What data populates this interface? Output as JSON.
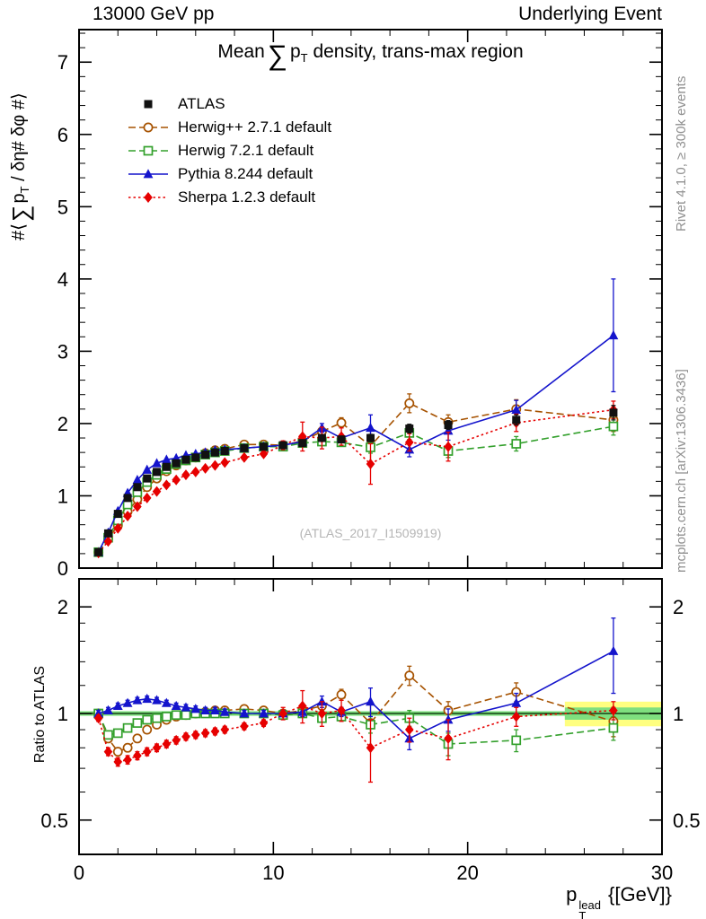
{
  "header": {
    "left": "13000 GeV pp",
    "right": "Underlying Event"
  },
  "side_notes": {
    "top": "Rivet 4.1.0, ≥ 300k events",
    "bottom": "mcplots.cern.ch [arXiv:1306.3436]"
  },
  "watermark": "(ATLAS_2017_I1509919)",
  "title": {
    "pre": "Mean",
    "sum": "∑",
    "p": "p",
    "sub": "T",
    "post": "density, trans-max region"
  },
  "ylabel": {
    "pre": "#⟨",
    "sum": "∑",
    "p": "p",
    "sub": "T",
    "post": "/ δη# δφ #⟩"
  },
  "ratio_label": "Ratio to ATLAS",
  "xlabel": {
    "p": "p",
    "sup": "lead",
    "sub": "T",
    "post": "{[GeV]}"
  },
  "chart_data": {
    "type": "line",
    "title": "Mean Sum pT density, trans-max region",
    "xlabel": "pT lead [GeV]",
    "xlim": [
      0,
      30
    ],
    "xticks": [
      0,
      10,
      20,
      30
    ],
    "x_minor_step": 2,
    "main_panel": {
      "ylim": [
        0,
        7.45
      ],
      "yticks": [
        0,
        1,
        2,
        3,
        4,
        5,
        6,
        7
      ],
      "y_minor_step": 0.2
    },
    "ratio_panel": {
      "scale": "log",
      "ylim": [
        0.4,
        2.4
      ],
      "yticks": [
        0.5,
        1,
        2
      ],
      "y_minor": [
        0.6,
        0.7,
        0.8,
        0.9,
        1.2,
        1.4,
        1.6,
        1.8
      ],
      "band": {
        "full_halfwidth": 0.015,
        "right_from_x": 25,
        "yellow_halfwidth": 0.08,
        "green_halfwidth": 0.04,
        "yellow": "#ffff80",
        "green": "#7fdf7f",
        "line": "#00a000"
      }
    },
    "x": [
      1,
      1.5,
      2,
      2.5,
      3,
      3.5,
      4,
      4.5,
      5,
      5.5,
      6,
      6.5,
      7,
      7.5,
      8.5,
      9.5,
      10.5,
      11.5,
      12.5,
      13.5,
      15,
      17,
      19,
      22.5,
      27.5
    ],
    "series": [
      {
        "name": "ATLAS",
        "color": "#111111",
        "marker": "square-filled",
        "line": "none",
        "values": [
          0.22,
          0.48,
          0.75,
          0.97,
          1.12,
          1.24,
          1.33,
          1.4,
          1.45,
          1.5,
          1.53,
          1.57,
          1.6,
          1.62,
          1.66,
          1.68,
          1.7,
          1.73,
          1.8,
          1.78,
          1.8,
          1.93,
          1.98,
          2.05,
          2.15
        ],
        "errors": [
          0.01,
          0.01,
          0.01,
          0.01,
          0.01,
          0.01,
          0.01,
          0.01,
          0.01,
          0.01,
          0.01,
          0.02,
          0.02,
          0.02,
          0.02,
          0.02,
          0.03,
          0.03,
          0.04,
          0.04,
          0.05,
          0.06,
          0.06,
          0.07,
          0.1
        ],
        "ratio": null,
        "ratio_errors": null
      },
      {
        "name": "Herwig++ 2.7.1 default",
        "color": "#a65200",
        "marker": "circle-open",
        "line": "dashed",
        "values": [
          0.22,
          0.41,
          0.59,
          0.78,
          0.95,
          1.12,
          1.24,
          1.34,
          1.42,
          1.49,
          1.53,
          1.59,
          1.63,
          1.65,
          1.71,
          1.71,
          1.7,
          1.76,
          1.89,
          2.01,
          1.69,
          2.28,
          2.02,
          2.2,
          2.05
        ],
        "errors": [
          0.01,
          0.01,
          0.01,
          0.01,
          0.01,
          0.01,
          0.01,
          0.01,
          0.01,
          0.01,
          0.02,
          0.02,
          0.02,
          0.02,
          0.02,
          0.02,
          0.03,
          0.04,
          0.05,
          0.07,
          0.25,
          0.13,
          0.1,
          0.13,
          0.16
        ],
        "ratio": [
          1.0,
          0.85,
          0.78,
          0.8,
          0.85,
          0.9,
          0.93,
          0.96,
          0.98,
          0.99,
          1.0,
          1.01,
          1.02,
          1.02,
          1.03,
          1.02,
          1.0,
          1.02,
          1.05,
          1.13,
          0.94,
          1.28,
          1.02,
          1.15,
          0.95
        ],
        "ratio_errors": [
          0.02,
          0.02,
          0.02,
          0.02,
          0.02,
          0.02,
          0.02,
          0.02,
          0.02,
          0.02,
          0.02,
          0.02,
          0.02,
          0.02,
          0.02,
          0.02,
          0.02,
          0.03,
          0.03,
          0.04,
          0.14,
          0.08,
          0.06,
          0.07,
          0.09
        ]
      },
      {
        "name": "Herwig 7.2.1 default",
        "color": "#33a02c",
        "marker": "square-open",
        "line": "dashed",
        "values": [
          0.22,
          0.42,
          0.66,
          0.88,
          1.05,
          1.19,
          1.29,
          1.37,
          1.44,
          1.49,
          1.53,
          1.57,
          1.6,
          1.62,
          1.66,
          1.68,
          1.68,
          1.73,
          1.75,
          1.74,
          1.67,
          1.87,
          1.62,
          1.72,
          1.96
        ],
        "errors": [
          0.01,
          0.01,
          0.01,
          0.01,
          0.01,
          0.01,
          0.01,
          0.01,
          0.01,
          0.01,
          0.01,
          0.01,
          0.02,
          0.02,
          0.02,
          0.02,
          0.02,
          0.03,
          0.03,
          0.04,
          0.08,
          0.09,
          0.09,
          0.1,
          0.12
        ],
        "ratio": [
          1.0,
          0.87,
          0.88,
          0.91,
          0.94,
          0.96,
          0.97,
          0.98,
          0.99,
          0.99,
          1.0,
          1.0,
          1.0,
          1.0,
          1.0,
          1.0,
          0.99,
          1.0,
          0.97,
          0.98,
          0.93,
          0.97,
          0.82,
          0.84,
          0.91
        ],
        "ratio_errors": [
          0.02,
          0.02,
          0.02,
          0.02,
          0.02,
          0.02,
          0.02,
          0.02,
          0.02,
          0.02,
          0.02,
          0.02,
          0.02,
          0.02,
          0.02,
          0.02,
          0.02,
          0.02,
          0.02,
          0.02,
          0.05,
          0.05,
          0.06,
          0.06,
          0.07
        ]
      },
      {
        "name": "Pythia 8.244 default",
        "color": "#1414cc",
        "marker": "triangle-filled",
        "line": "solid",
        "values": [
          0.22,
          0.49,
          0.79,
          1.04,
          1.22,
          1.36,
          1.45,
          1.5,
          1.52,
          1.56,
          1.58,
          1.6,
          1.63,
          1.64,
          1.66,
          1.68,
          1.7,
          1.75,
          1.94,
          1.8,
          1.94,
          1.64,
          1.9,
          2.19,
          3.22
        ],
        "errors": [
          0.01,
          0.01,
          0.01,
          0.01,
          0.01,
          0.01,
          0.01,
          0.01,
          0.01,
          0.01,
          0.01,
          0.02,
          0.02,
          0.02,
          0.02,
          0.02,
          0.03,
          0.04,
          0.06,
          0.05,
          0.18,
          0.1,
          0.13,
          0.13,
          0.78
        ],
        "ratio": [
          1.0,
          1.02,
          1.05,
          1.07,
          1.09,
          1.1,
          1.09,
          1.07,
          1.05,
          1.04,
          1.03,
          1.02,
          1.02,
          1.01,
          1.0,
          1.0,
          1.0,
          1.01,
          1.08,
          1.01,
          1.08,
          0.85,
          0.96,
          1.07,
          1.5
        ],
        "ratio_errors": [
          0.02,
          0.02,
          0.02,
          0.02,
          0.02,
          0.02,
          0.02,
          0.02,
          0.02,
          0.02,
          0.02,
          0.02,
          0.02,
          0.02,
          0.02,
          0.02,
          0.02,
          0.03,
          0.04,
          0.03,
          0.1,
          0.06,
          0.07,
          0.07,
          0.36
        ]
      },
      {
        "name": "Sherpa 1.2.3 default",
        "color": "#e60000",
        "marker": "diamond-filled",
        "line": "dotted",
        "values": [
          0.21,
          0.37,
          0.55,
          0.72,
          0.85,
          0.97,
          1.06,
          1.15,
          1.22,
          1.29,
          1.33,
          1.38,
          1.42,
          1.46,
          1.53,
          1.58,
          1.7,
          1.82,
          1.8,
          1.82,
          1.44,
          1.74,
          1.68,
          2.01,
          2.19
        ],
        "errors": [
          0.01,
          0.01,
          0.01,
          0.01,
          0.01,
          0.01,
          0.01,
          0.01,
          0.01,
          0.01,
          0.01,
          0.02,
          0.02,
          0.02,
          0.03,
          0.03,
          0.06,
          0.2,
          0.15,
          0.12,
          0.28,
          0.12,
          0.2,
          0.12,
          0.12
        ],
        "ratio": [
          0.97,
          0.78,
          0.73,
          0.74,
          0.76,
          0.78,
          0.8,
          0.82,
          0.84,
          0.86,
          0.87,
          0.88,
          0.89,
          0.9,
          0.92,
          0.94,
          1.0,
          1.05,
          1.0,
          1.02,
          0.8,
          0.9,
          0.85,
          0.98,
          1.02
        ],
        "ratio_errors": [
          0.02,
          0.02,
          0.02,
          0.02,
          0.02,
          0.02,
          0.02,
          0.02,
          0.02,
          0.02,
          0.02,
          0.02,
          0.02,
          0.02,
          0.02,
          0.02,
          0.04,
          0.11,
          0.08,
          0.07,
          0.16,
          0.07,
          0.11,
          0.06,
          0.06
        ]
      }
    ]
  }
}
